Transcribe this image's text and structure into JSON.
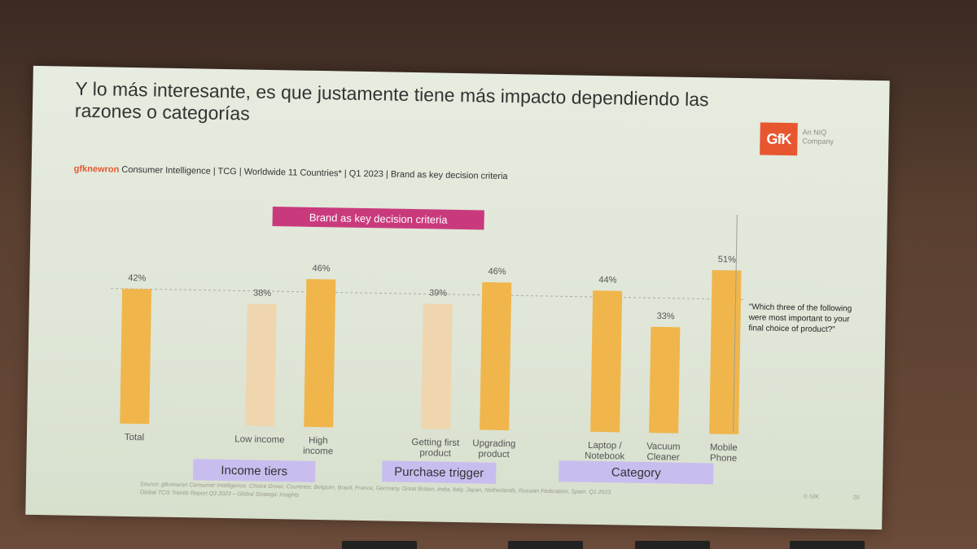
{
  "slide": {
    "title": "Y lo más interesante, es que justamente tiene más impacto dependiendo las razones o categorías",
    "logo_text": "GfK",
    "logo_sub": "An NIQ Company",
    "subtitle_brand": "gfknewron",
    "subtitle_rest": " Consumer Intelligence | TCG | Worldwide 11 Countries* | Q1 2023 | Brand as key decision criteria",
    "note": "\"Which three of the following were most important to your final choice of product?\"",
    "source_line1": "Source: gfknewron Consumer Intelligence, Choice Driver, Countries: Belgium, Brazil, France, Germany, Great Britain, India, Italy, Japan, Netherlands, Russian Federation, Spain. Q1 2023",
    "source_line2": "Global TCG Trends Report Q2 2023 – Global Strategic Insights",
    "copyright": "© GfK",
    "page_number": "20"
  },
  "chart_data": {
    "type": "bar",
    "title": "Brand as key decision criteria",
    "categories": [
      "Total",
      "Low income",
      "High income",
      "Getting first product",
      "Upgrading product",
      "Laptop / Notebook",
      "Vacuum Cleaner",
      "Mobile Phone"
    ],
    "category_lines": [
      [
        "Total"
      ],
      [
        "Low income"
      ],
      [
        "High",
        "income"
      ],
      [
        "Getting first",
        "product"
      ],
      [
        "Upgrading",
        "product"
      ],
      [
        "Laptop /",
        "Notebook"
      ],
      [
        "Vacuum",
        "Cleaner"
      ],
      [
        "Mobile",
        "Phone"
      ]
    ],
    "values": [
      42,
      38,
      46,
      39,
      46,
      44,
      33,
      51
    ],
    "value_labels": [
      "42%",
      "38%",
      "46%",
      "39%",
      "46%",
      "44%",
      "33%",
      "51%"
    ],
    "bar_shades": [
      "dark",
      "light",
      "dark",
      "light",
      "dark",
      "dark",
      "dark",
      "dark"
    ],
    "groups": [
      {
        "label": "Income tiers",
        "categories": [
          "Low income",
          "High income"
        ]
      },
      {
        "label": "Purchase trigger",
        "categories": [
          "Getting first product",
          "Upgrading product"
        ]
      },
      {
        "label": "Category",
        "categories": [
          "Laptop / Notebook",
          "Vacuum Cleaner",
          "Mobile Phone"
        ]
      }
    ],
    "reference_line": 42,
    "ylim": [
      0,
      55
    ],
    "grid": false,
    "colors": {
      "dark": "#f0b64c",
      "light": "#efd6ae",
      "text": "#555555"
    }
  }
}
